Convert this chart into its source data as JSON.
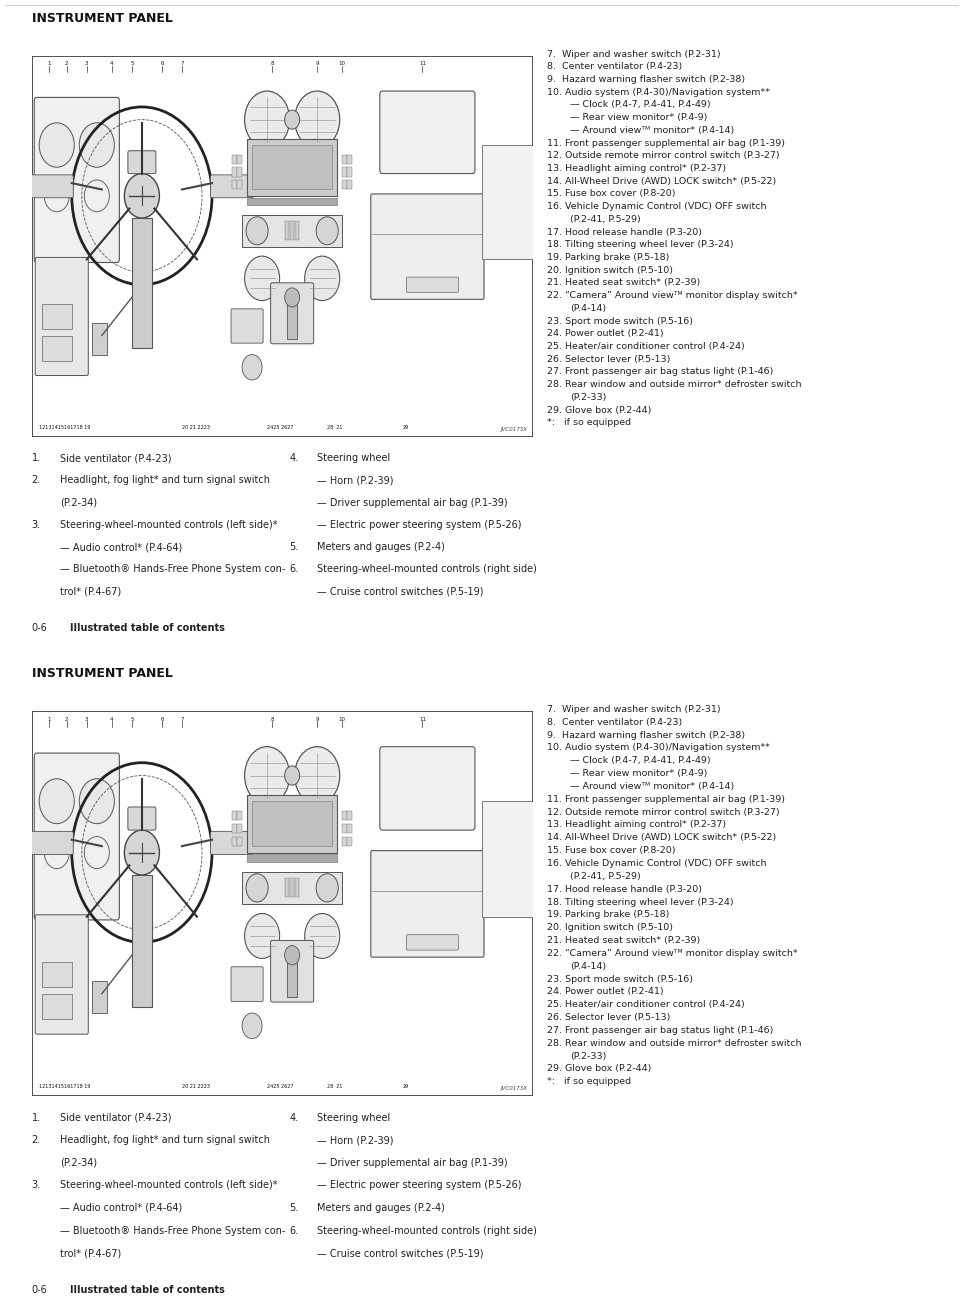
{
  "bg_color": "#ffffff",
  "title": "INSTRUMENT PANEL",
  "title_fontsize": 9,
  "title_color": "#111111",
  "text_color": "#222222",
  "text_fontsize": 7.0,
  "stamp": "JVC0173X",
  "right_col": [
    [
      "7.",
      "  Wiper and washer switch (P.2-31)"
    ],
    [
      "8.",
      "  Center ventilator (P.4-23)"
    ],
    [
      "9.",
      "  Hazard warning flasher switch (P.2-38)"
    ],
    [
      "10.",
      " Audio system (P.4-30)/Navigation system**"
    ],
    [
      "",
      "    — Clock (P.4-7, P.4-41, P.4-49)"
    ],
    [
      "",
      "    — Rear view monitor* (P.4-9)"
    ],
    [
      "",
      "    — Around viewᵀᴹ monitor* (P.4-14)"
    ],
    [
      "11.",
      " Front passenger supplemental air bag (P.1-39)"
    ],
    [
      "12.",
      " Outside remote mirror control switch (P.3-27)"
    ],
    [
      "13.",
      " Headlight aiming control* (P.2-37)"
    ],
    [
      "14.",
      " All-Wheel Drive (AWD) LOCK switch* (P.5-22)"
    ],
    [
      "15.",
      " Fuse box cover (P.8-20)"
    ],
    [
      "16.",
      " Vehicle Dynamic Control (VDC) OFF switch"
    ],
    [
      "",
      "    (P.2-41, P.5-29)"
    ],
    [
      "17.",
      " Hood release handle (P.3-20)"
    ],
    [
      "18.",
      " Tilting steering wheel lever (P.3-24)"
    ],
    [
      "19.",
      " Parking brake (P.5-18)"
    ],
    [
      "20.",
      " Ignition switch (P.5-10)"
    ],
    [
      "21.",
      " Heated seat switch* (P.2-39)"
    ],
    [
      "22.",
      " “Camera” Around viewᵀᴹ monitor display switch*"
    ],
    [
      "",
      "    (P.4-14)"
    ],
    [
      "23.",
      " Sport mode switch (P.5-16)"
    ],
    [
      "24.",
      " Power outlet (P.2-41)"
    ],
    [
      "25.",
      " Heater/air conditioner control (P.4-24)"
    ],
    [
      "26.",
      " Selector lever (P.5-13)"
    ],
    [
      "27.",
      " Front passenger air bag status light (P.1-46)"
    ],
    [
      "28.",
      " Rear window and outside mirror* defroster switch"
    ],
    [
      "",
      "    (P.2-33)"
    ],
    [
      "29.",
      " Glove box (P.2-44)"
    ],
    [
      "*:",
      "   if so equipped"
    ]
  ],
  "left_col": [
    [
      "1.",
      "Side ventilator (P.4-23)",
      false
    ],
    [
      "2.",
      "Headlight, fog light* and turn signal switch",
      false
    ],
    [
      "",
      "(P.2-34)",
      true
    ],
    [
      "3.",
      "Steering-wheel-mounted controls (left side)*",
      false
    ],
    [
      "",
      "— Audio control* (P.4-64)",
      true
    ],
    [
      "",
      "— Bluetooth® Hands-Free Phone System con-",
      true
    ],
    [
      "",
      "trol* (P.4-67)",
      true
    ]
  ],
  "mid_col": [
    [
      "4.",
      "Steering wheel",
      false
    ],
    [
      "",
      "— Horn (P.2-39)",
      true
    ],
    [
      "",
      "— Driver supplemental air bag (P.1-39)",
      true
    ],
    [
      "",
      "— Electric power steering system (P.5-26)",
      true
    ],
    [
      "5.",
      "Meters and gauges (P.2-4)",
      false
    ],
    [
      "6.",
      "Steering-wheel-mounted controls (right side)",
      false
    ],
    [
      "",
      "— Cruise control switches (P.5-19)",
      true
    ]
  ],
  "footer_num": "0-6",
  "footer_text": "Illustrated table of contents"
}
